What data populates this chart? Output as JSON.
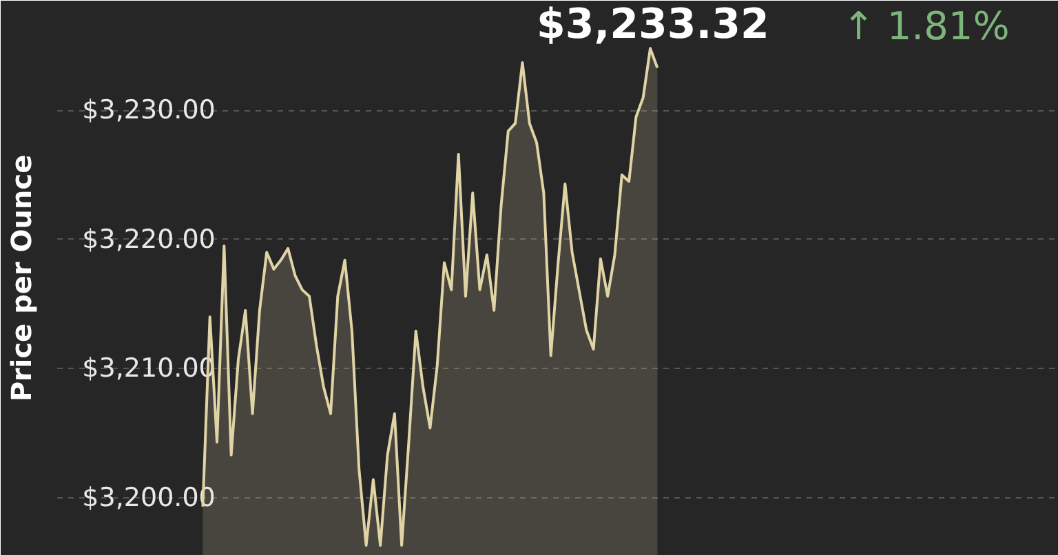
{
  "chart_data": {
    "type": "area",
    "ylabel": "Price per Ounce",
    "annotations": [
      "$3,233.32",
      "↑ 1.81%"
    ],
    "categories": [
      null,
      null,
      null,
      null,
      null,
      null,
      null,
      null,
      null,
      null,
      null,
      null,
      null,
      null,
      null,
      null,
      null,
      null,
      null,
      null,
      null,
      null,
      null,
      null,
      null,
      null,
      null,
      null,
      null,
      null,
      null,
      null,
      null,
      null,
      null,
      null,
      null,
      null,
      null,
      null,
      null,
      null,
      null,
      null,
      null,
      null,
      null,
      null,
      null,
      null,
      null,
      null,
      null,
      null,
      null,
      null,
      null,
      null,
      null,
      null,
      null,
      null,
      null,
      null,
      null,
      null,
      null,
      null,
      null,
      null,
      null,
      null,
      null,
      null,
      null,
      null,
      null,
      null,
      null,
      null,
      null,
      null,
      null,
      null,
      null,
      null,
      null,
      null,
      null,
      null,
      null,
      null,
      null,
      null,
      null,
      null,
      null,
      null,
      null,
      null,
      null,
      null,
      null,
      null,
      null,
      null,
      null,
      null,
      null,
      null,
      null,
      null,
      null,
      null,
      null,
      null,
      null,
      null,
      null,
      null,
      null,
      null,
      null,
      null,
      null,
      null,
      null,
      null,
      null,
      null,
      null,
      null,
      null,
      null,
      null,
      null,
      null,
      null,
      null,
      null,
      null
    ],
    "series": [
      {
        "color": "#e0d3a5",
        "values": [
          null,
          null,
          null,
          null,
          null,
          null,
          null,
          null,
          null,
          null,
          null,
          null,
          null,
          null,
          null,
          null,
          null,
          null,
          null,
          null,
          3199.3,
          3214,
          3204.3,
          3219.5,
          3203.3,
          3210.7,
          3214.5,
          3206.5,
          3214.5,
          3219,
          3217.7,
          3218.4,
          3219.3,
          3217.2,
          3216.1,
          3215.6,
          3211.8,
          3208.6,
          3206.5,
          3215.6,
          3218.4,
          3212.9,
          3202.2,
          3196.3,
          3201.4,
          3196.3,
          3203.3,
          3206.5,
          3196.3,
          3204.3,
          3212.9,
          3208.6,
          3205.4,
          3210.2,
          3218.2,
          3216.1,
          3226.6,
          3215.6,
          3223.6,
          3216.1,
          3218.8,
          3214.5,
          3222.6,
          3228.4,
          3229,
          3233.7,
          3229,
          3227.5,
          3223.6,
          3211,
          3218,
          3224.3,
          3219,
          3216,
          3213,
          3211.5,
          3218.5,
          3215.6,
          3218.8,
          3225,
          3224.5,
          3229.5,
          3231,
          3234.8,
          3233.3,
          null,
          null,
          null,
          null,
          null,
          null,
          null,
          null,
          null,
          null,
          null,
          null,
          null,
          null,
          null,
          null,
          null,
          null,
          null,
          null,
          null,
          null,
          null,
          null,
          null,
          null,
          null,
          null,
          null,
          null,
          null,
          null,
          null,
          null,
          null,
          null,
          null,
          null,
          null,
          null,
          null,
          null,
          null,
          null,
          null,
          null,
          null,
          null,
          null,
          null,
          null,
          null,
          null,
          null,
          null,
          null
        ]
      }
    ],
    "ylim": [
      3195.5,
      3238.5
    ],
    "yticks": [
      {
        "value": 3200,
        "label": "$3,200.00"
      },
      {
        "value": 3210,
        "label": "$3,210.00"
      },
      {
        "value": 3220,
        "label": "$3,220.00"
      },
      {
        "value": 3230,
        "label": "$3,230.00"
      }
    ],
    "grid": "y",
    "line_style": "solid",
    "tick_labels": "y"
  }
}
